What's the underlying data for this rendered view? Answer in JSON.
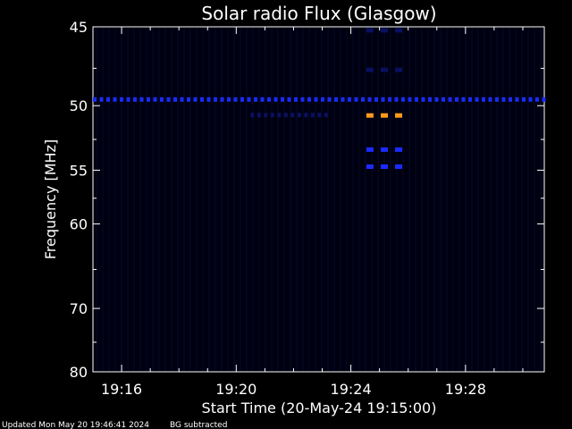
{
  "chart_data": {
    "type": "heatmap",
    "title": "Solar radio Flux (Glasgow)",
    "xlabel": "Start Time (20-May-24 19:15:00)",
    "ylabel": "Frequency [MHz]",
    "x_unit": "HH:MM",
    "xlim": [
      "19:15:00",
      "19:30:45"
    ],
    "ylim": [
      45,
      80
    ],
    "x_ticks": [
      "19:16",
      "19:20",
      "19:24",
      "19:28"
    ],
    "y_ticks": [
      45,
      50,
      55,
      60,
      70,
      80
    ],
    "y_scale": "reciprocal",
    "background_color": "#000010",
    "colors": {
      "blue": "#1a2bff",
      "dark_blue": "#0a1060",
      "orange": "#ff9a1a"
    },
    "features": [
      {
        "kind": "horizontal_band",
        "frequency_mhz": 49.6,
        "from": "19:15:00",
        "to": "19:30:45",
        "color": "blue"
      },
      {
        "kind": "horizontal_band",
        "frequency_mhz": 50.7,
        "from": "19:20:30",
        "to": "19:23:15",
        "color": "dark_blue"
      },
      {
        "kind": "burst",
        "frequency_mhz": 50.7,
        "times": [
          "19:24:40",
          "19:25:10",
          "19:25:40"
        ],
        "color": "orange"
      },
      {
        "kind": "burst",
        "frequency_mhz": 53.3,
        "times": [
          "19:24:40",
          "19:25:10",
          "19:25:40"
        ],
        "color": "blue"
      },
      {
        "kind": "burst",
        "frequency_mhz": 54.7,
        "times": [
          "19:24:40",
          "19:25:10",
          "19:25:40"
        ],
        "color": "blue"
      },
      {
        "kind": "burst",
        "frequency_mhz": 47.6,
        "times": [
          "19:24:40",
          "19:25:10",
          "19:25:40"
        ],
        "color": "dark_blue"
      },
      {
        "kind": "burst",
        "frequency_mhz": 45.2,
        "times": [
          "19:24:40",
          "19:25:10",
          "19:25:40"
        ],
        "color": "dark_blue"
      }
    ]
  },
  "footer": {
    "updated": "Updated Mon May 20 19:46:41 2024",
    "note": "BG subtracted"
  }
}
